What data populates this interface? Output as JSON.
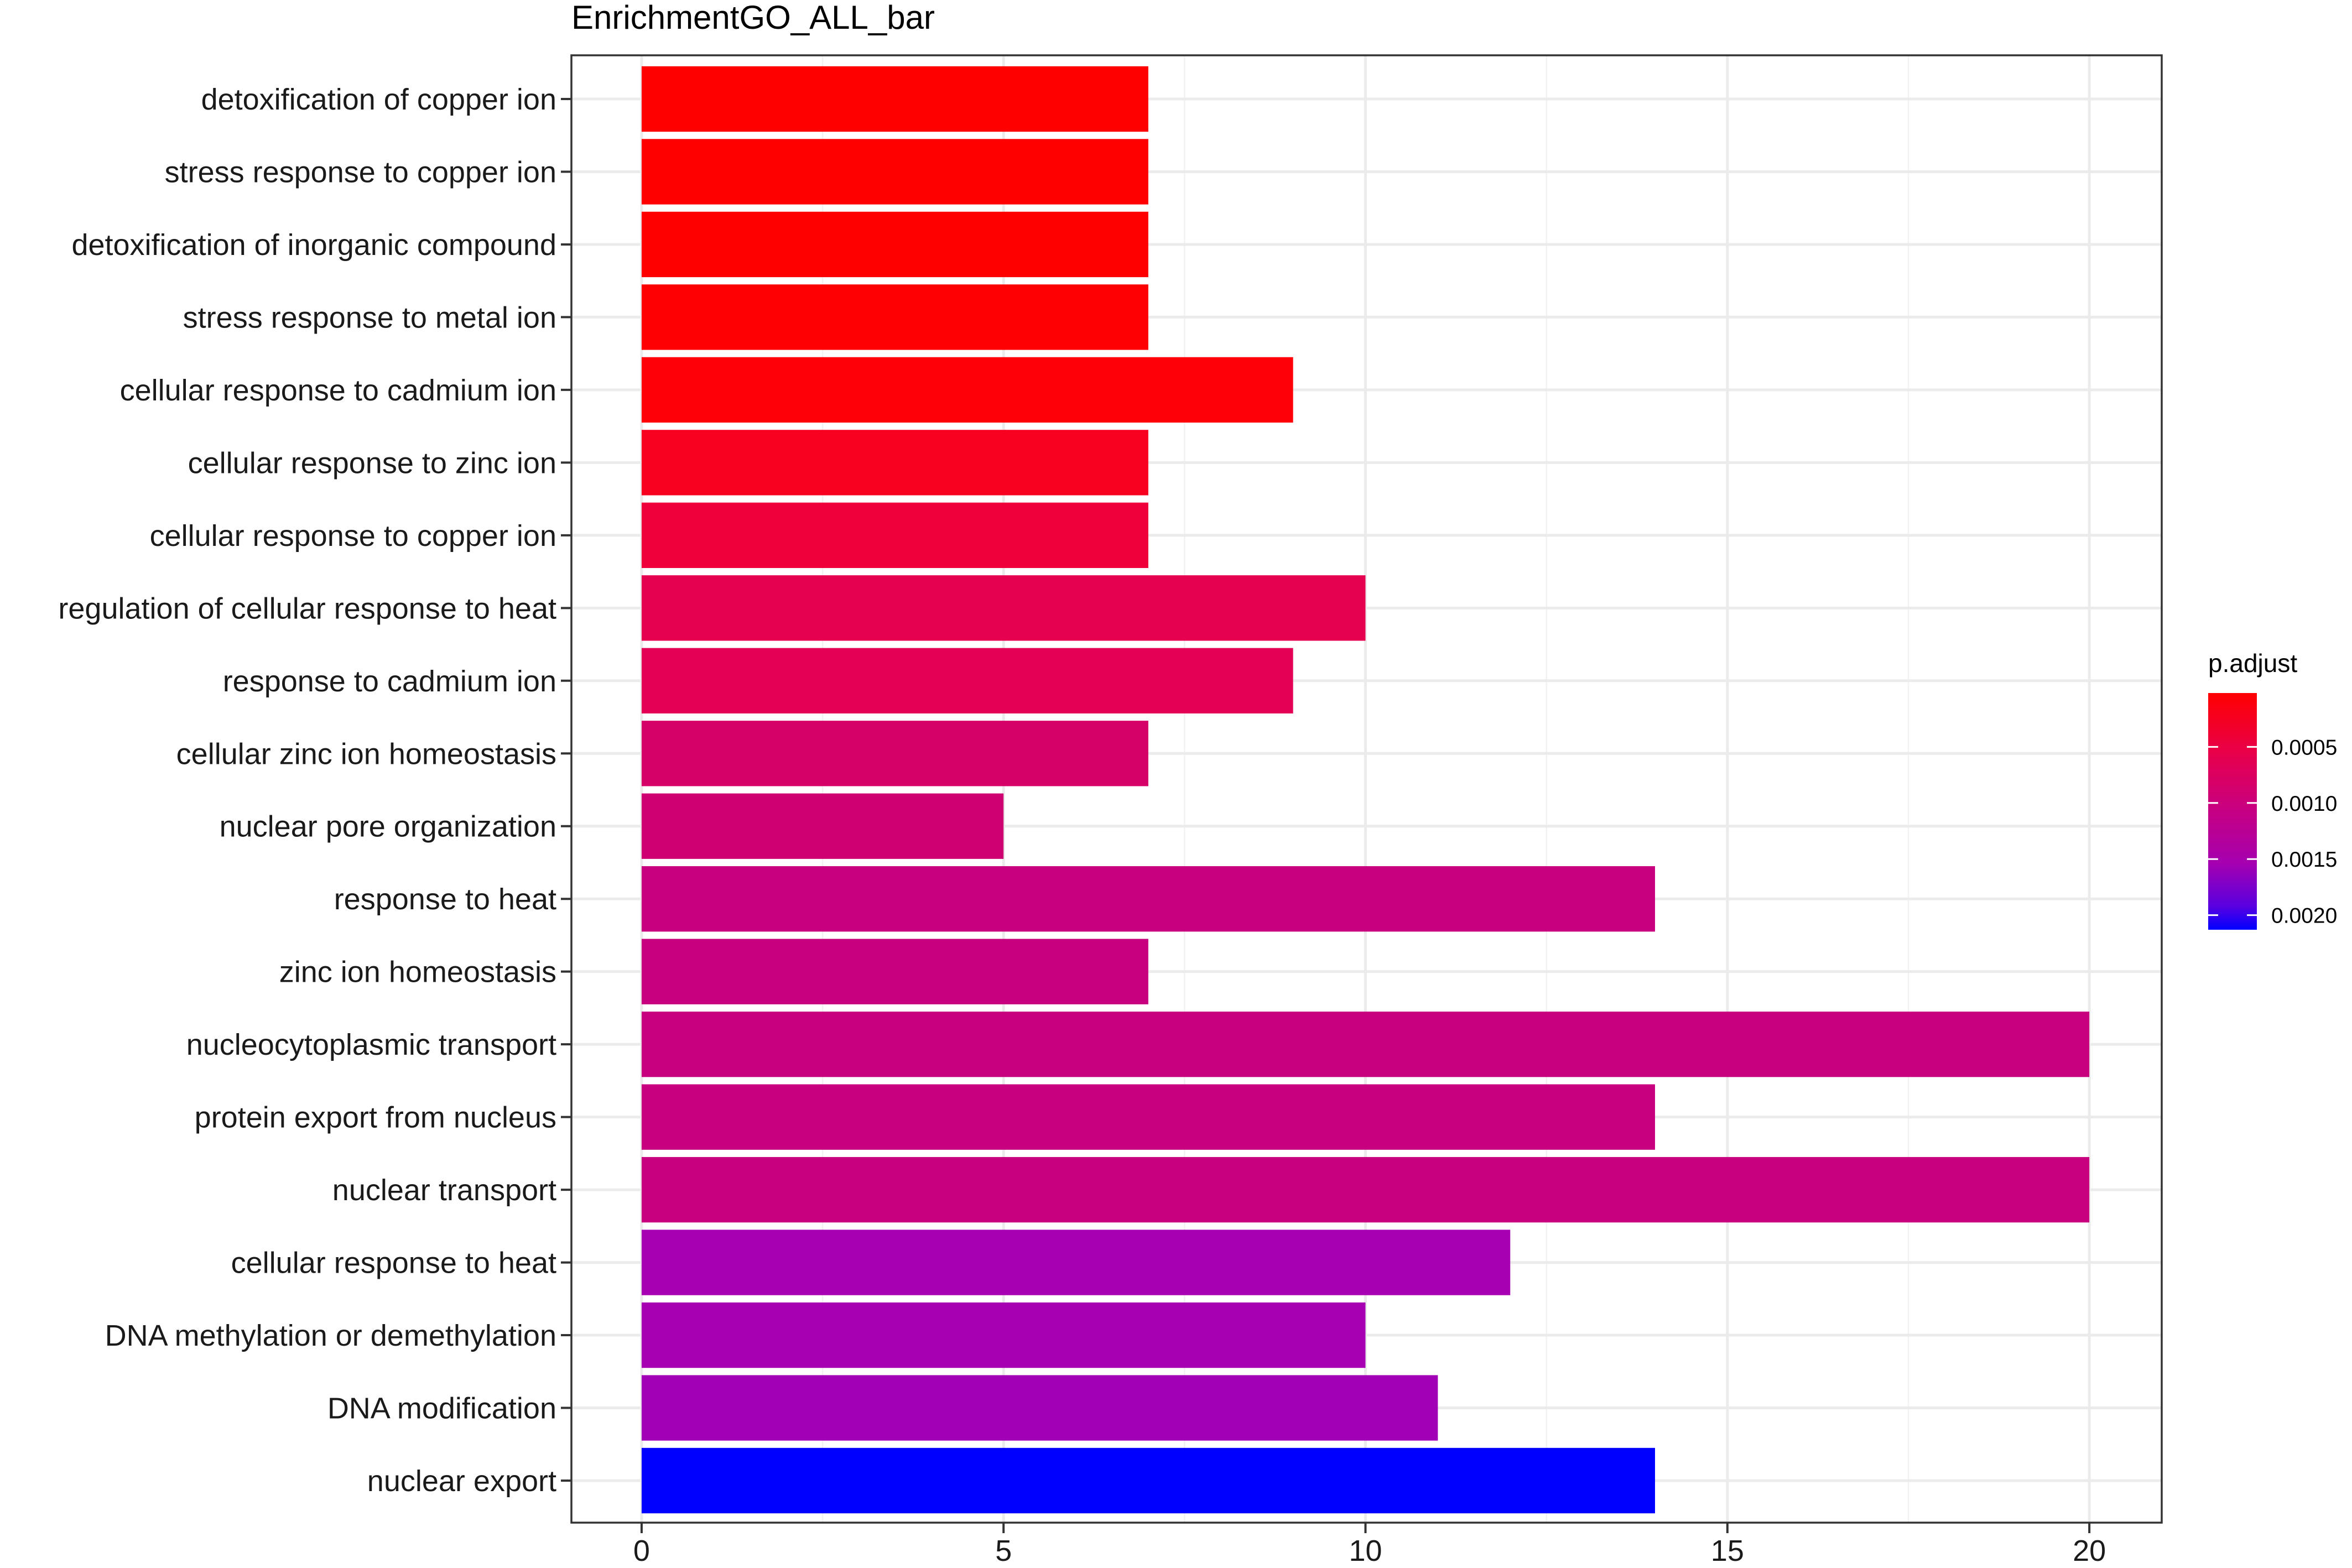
{
  "chart_data": {
    "type": "bar",
    "orientation": "horizontal",
    "title": "EnrichmentGO_ALL_bar",
    "xlabel": "",
    "ylabel": "",
    "xlim": [
      -0.97,
      21.0
    ],
    "x_ticks": [
      0,
      5,
      10,
      15,
      20
    ],
    "x_tick_labels": [
      "0",
      "5",
      "10",
      "15",
      "20"
    ],
    "grid": true,
    "categories": [
      "detoxification of copper ion",
      "stress response to copper ion",
      "detoxification of inorganic compound",
      "stress response to metal ion",
      "cellular response to cadmium ion",
      "cellular response to zinc ion",
      "cellular response to copper ion",
      "regulation of cellular response to heat",
      "response to cadmium ion",
      "cellular zinc ion homeostasis",
      "nuclear pore organization",
      "response to heat",
      "zinc ion homeostasis",
      "nucleocytoplasmic transport",
      "protein export from nucleus",
      "nuclear transport",
      "cellular response to heat",
      "DNA methylation or demethylation",
      "DNA modification",
      "nuclear export"
    ],
    "values": [
      7,
      7,
      7,
      7,
      9,
      7,
      7,
      10,
      9,
      7,
      5,
      14,
      7,
      20,
      14,
      20,
      12,
      10,
      11,
      14
    ],
    "p_adjust": [
      2e-05,
      2e-05,
      2e-05,
      3e-05,
      4e-05,
      0.00015,
      0.0003,
      0.00055,
      0.00056,
      0.0008,
      0.0009,
      0.001,
      0.001,
      0.001,
      0.001,
      0.001,
      0.0015,
      0.0015,
      0.00155,
      0.00213
    ],
    "colors": [
      "#FF0000",
      "#FF0000",
      "#FF0000",
      "#FE0004",
      "#FD0008",
      "#F80020",
      "#F0003A",
      "#E50050",
      "#E30055",
      "#D50068",
      "#CF0072",
      "#C8007F",
      "#C8007F",
      "#C8007F",
      "#C8007F",
      "#C8007F",
      "#A600B2",
      "#A600B2",
      "#A200B7",
      "#0000FF"
    ],
    "legend": {
      "title": "p.adjust",
      "position": "right",
      "range": [
        2e-05,
        0.00213
      ],
      "tick_values": [
        0.0005,
        0.001,
        0.0015,
        0.002
      ],
      "tick_labels": [
        "0.0005",
        "0.0010",
        "0.0015",
        "0.0020"
      ],
      "low_color": "#FF0000",
      "high_color": "#0000FF"
    }
  }
}
